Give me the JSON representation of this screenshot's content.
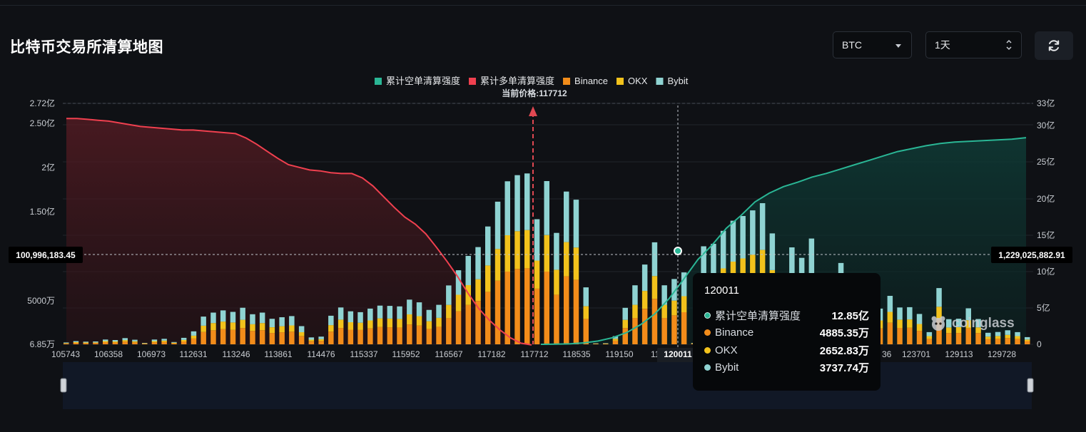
{
  "page": {
    "title": "比特币交易所清算地图"
  },
  "controls": {
    "symbol_select": {
      "value": "BTC"
    },
    "range_select": {
      "value": "1天"
    },
    "refresh_icon": "refresh-icon"
  },
  "colors": {
    "background": "#0f1115",
    "short_line": "#2ab695",
    "long_line": "#f0404f",
    "binance": "#f28c1a",
    "okx": "#f2c21c",
    "bybit": "#8fd3d2",
    "price_marker": "#e04852"
  },
  "chart_data": {
    "type": "bar",
    "legend": [
      {
        "name": "累计空单清算强度",
        "color": "#2ab695"
      },
      {
        "name": "累计多单清算强度",
        "color": "#f0404f"
      },
      {
        "name": "Binance",
        "color": "#f28c1a"
      },
      {
        "name": "OKX",
        "color": "#f2c21c"
      },
      {
        "name": "Bybit",
        "color": "#8fd3d2"
      }
    ],
    "legend_position": "top-center",
    "current_price_label": "当前价格:117712",
    "current_price": 117712,
    "x_tick_labels": [
      "105743",
      "106358",
      "106973",
      "112631",
      "113246",
      "113861",
      "114476",
      "115337",
      "115952",
      "116567",
      "117182",
      "117712",
      "118535",
      "119150",
      "120011",
      "123701",
      "129113",
      "129728"
    ],
    "x_tick_label_partial_1": "11",
    "x_tick_label_partial_2": "36",
    "y_left_ticks": [
      "6.85万",
      "5000万",
      "1.50亿",
      "2亿",
      "2.50亿",
      "2.72亿"
    ],
    "y_left_tick_values": [
      685000,
      50000000,
      150000000,
      200000000,
      250000000,
      272000000
    ],
    "y_right_ticks": [
      "0",
      "5亿",
      "10亿",
      "15亿",
      "20亿",
      "25亿",
      "30亿",
      "33亿"
    ],
    "y_right_tick_values": [
      0,
      500000000,
      1000000000,
      1500000000,
      2000000000,
      2500000000,
      3000000000,
      3300000000
    ],
    "crosshair_left_value": "100,996,183.45",
    "crosshair_right_value": "1,229,025,882.91",
    "bars": {
      "binance": [
        0.9,
        1.6,
        1.3,
        1.5,
        2.4,
        2.1,
        3.1,
        2.2,
        0.7,
        2.3,
        2.7,
        1.1,
        3.2,
        6.5,
        13.9,
        15.8,
        17.0,
        16.2,
        18.3,
        15.1,
        15.9,
        12.8,
        13.6,
        14.2,
        9.1,
        3.4,
        3.8,
        14.3,
        18.4,
        16.5,
        16.1,
        17.9,
        19.4,
        19.2,
        19.0,
        22.3,
        21.0,
        17.3,
        19.8,
        29.5,
        37.1,
        44.3,
        48.8,
        59.1,
        71.6,
        81.9,
        84.9,
        85.7,
        62.7,
        81.9,
        55.9,
        76.6,
        72.6,
        28.6,
        0.4,
        0.5,
        4.1,
        18.3,
        29.6,
        40.0,
        51.2,
        29.6,
        32.7,
        36.1,
        0.7,
        49.2,
        50.4,
        56.9,
        62.0,
        64.4,
        67.2,
        70.8,
        55.6,
        30.6,
        48.6,
        43.4,
        53.0,
        34.5,
        21.6,
        40.8,
        18.8,
        15.2,
        13.3,
        17.9,
        24.3,
        18.5,
        18.6,
        15.2,
        6.1,
        28.2,
        12.6,
        12.8,
        18.0,
        12.7,
        5.8,
        6.2,
        7.0,
        6.1,
        3.6
      ],
      "okx": [
        0.5,
        0.8,
        0.7,
        0.6,
        1.2,
        1.1,
        1.6,
        1.2,
        0.4,
        1.3,
        1.5,
        0.7,
        1.7,
        3.2,
        7.0,
        8.1,
        8.6,
        8.3,
        9.3,
        7.6,
        8.0,
        6.4,
        6.8,
        7.1,
        4.6,
        1.8,
        2.0,
        7.3,
        9.4,
        8.4,
        8.2,
        9.0,
        9.8,
        9.8,
        9.6,
        11.4,
        10.7,
        8.7,
        10.0,
        14.9,
        18.7,
        22.3,
        24.5,
        29.7,
        35.8,
        40.9,
        42.5,
        43.0,
        31.6,
        41.1,
        28.1,
        38.5,
        36.4,
        14.3,
        0.3,
        0.3,
        2.1,
        9.2,
        14.9,
        20.1,
        25.7,
        14.9,
        16.5,
        18.1,
        0.4,
        24.7,
        25.4,
        28.6,
        31.1,
        32.3,
        33.7,
        35.5,
        28.0,
        15.4,
        24.5,
        21.8,
        26.7,
        17.4,
        10.8,
        20.5,
        9.5,
        7.7,
        6.7,
        9.0,
        12.2,
        9.3,
        9.4,
        7.7,
        3.1,
        14.1,
        6.3,
        6.5,
        9.1,
        6.4,
        2.9,
        3.1,
        3.6,
        3.1,
        1.8
      ],
      "bybit": [
        0.7,
        1.2,
        1.0,
        1.1,
        1.8,
        1.6,
        2.3,
        1.7,
        0.5,
        1.8,
        2.0,
        0.8,
        2.4,
        4.9,
        10.3,
        11.8,
        12.6,
        12.0,
        13.6,
        11.2,
        11.8,
        9.5,
        10.1,
        10.5,
        6.8,
        2.6,
        2.9,
        10.6,
        13.7,
        12.3,
        11.9,
        13.3,
        14.4,
        14.3,
        14.1,
        16.6,
        15.6,
        12.8,
        14.7,
        21.9,
        27.6,
        32.9,
        36.2,
        43.9,
        53.2,
        60.8,
        63.1,
        63.7,
        46.6,
        60.8,
        41.5,
        56.9,
        53.9,
        21.2,
        0.4,
        0.4,
        3.0,
        13.6,
        22.0,
        29.7,
        38.0,
        22.0,
        24.3,
        26.8,
        0.5,
        36.5,
        37.4,
        42.3,
        46.1,
        47.8,
        49.9,
        52.6,
        41.3,
        22.8,
        36.1,
        32.2,
        39.4,
        25.6,
        16.0,
        30.3,
        13.9,
        11.3,
        9.9,
        13.3,
        18.1,
        13.7,
        13.8,
        11.3,
        4.5,
        21.0,
        9.4,
        9.5,
        13.4,
        9.4,
        4.3,
        4.6,
        5.2,
        4.5,
        2.7
      ]
    },
    "long_cumulative_line": [
      2.55,
      2.55,
      2.54,
      2.53,
      2.52,
      2.5,
      2.48,
      2.46,
      2.45,
      2.44,
      2.43,
      2.42,
      2.42,
      2.41,
      2.4,
      2.39,
      2.38,
      2.33,
      2.26,
      2.18,
      2.1,
      2.03,
      2.0,
      1.97,
      1.96,
      1.94,
      1.93,
      1.93,
      1.88,
      1.79,
      1.67,
      1.55,
      1.44,
      1.36,
      1.25,
      1.1,
      0.94,
      0.77,
      0.58,
      0.41,
      0.28,
      0.17,
      0.08,
      0.02,
      0.0
    ],
    "short_cumulative_line": [
      0.0,
      0.02,
      0.06,
      0.2,
      0.45,
      0.9,
      1.6,
      2.7,
      4.2,
      6.3,
      8.9,
      11.6,
      13.6,
      15.9,
      17.6,
      19.5,
      20.7,
      21.6,
      22.2,
      22.9,
      23.4,
      24.0,
      24.6,
      25.2,
      25.8,
      26.4,
      26.8,
      27.2,
      27.5,
      27.7,
      27.8,
      27.9,
      28.0,
      28.1,
      28.3
    ],
    "tooltip": {
      "title": "120011",
      "rows": [
        {
          "label": "累计空单清算强度",
          "value": "12.85亿"
        },
        {
          "label": "Binance",
          "value": "4885.35万"
        },
        {
          "label": "OKX",
          "value": "2652.83万"
        },
        {
          "label": "Bybit",
          "value": "3737.74万"
        }
      ]
    },
    "watermark": "coinglass"
  }
}
